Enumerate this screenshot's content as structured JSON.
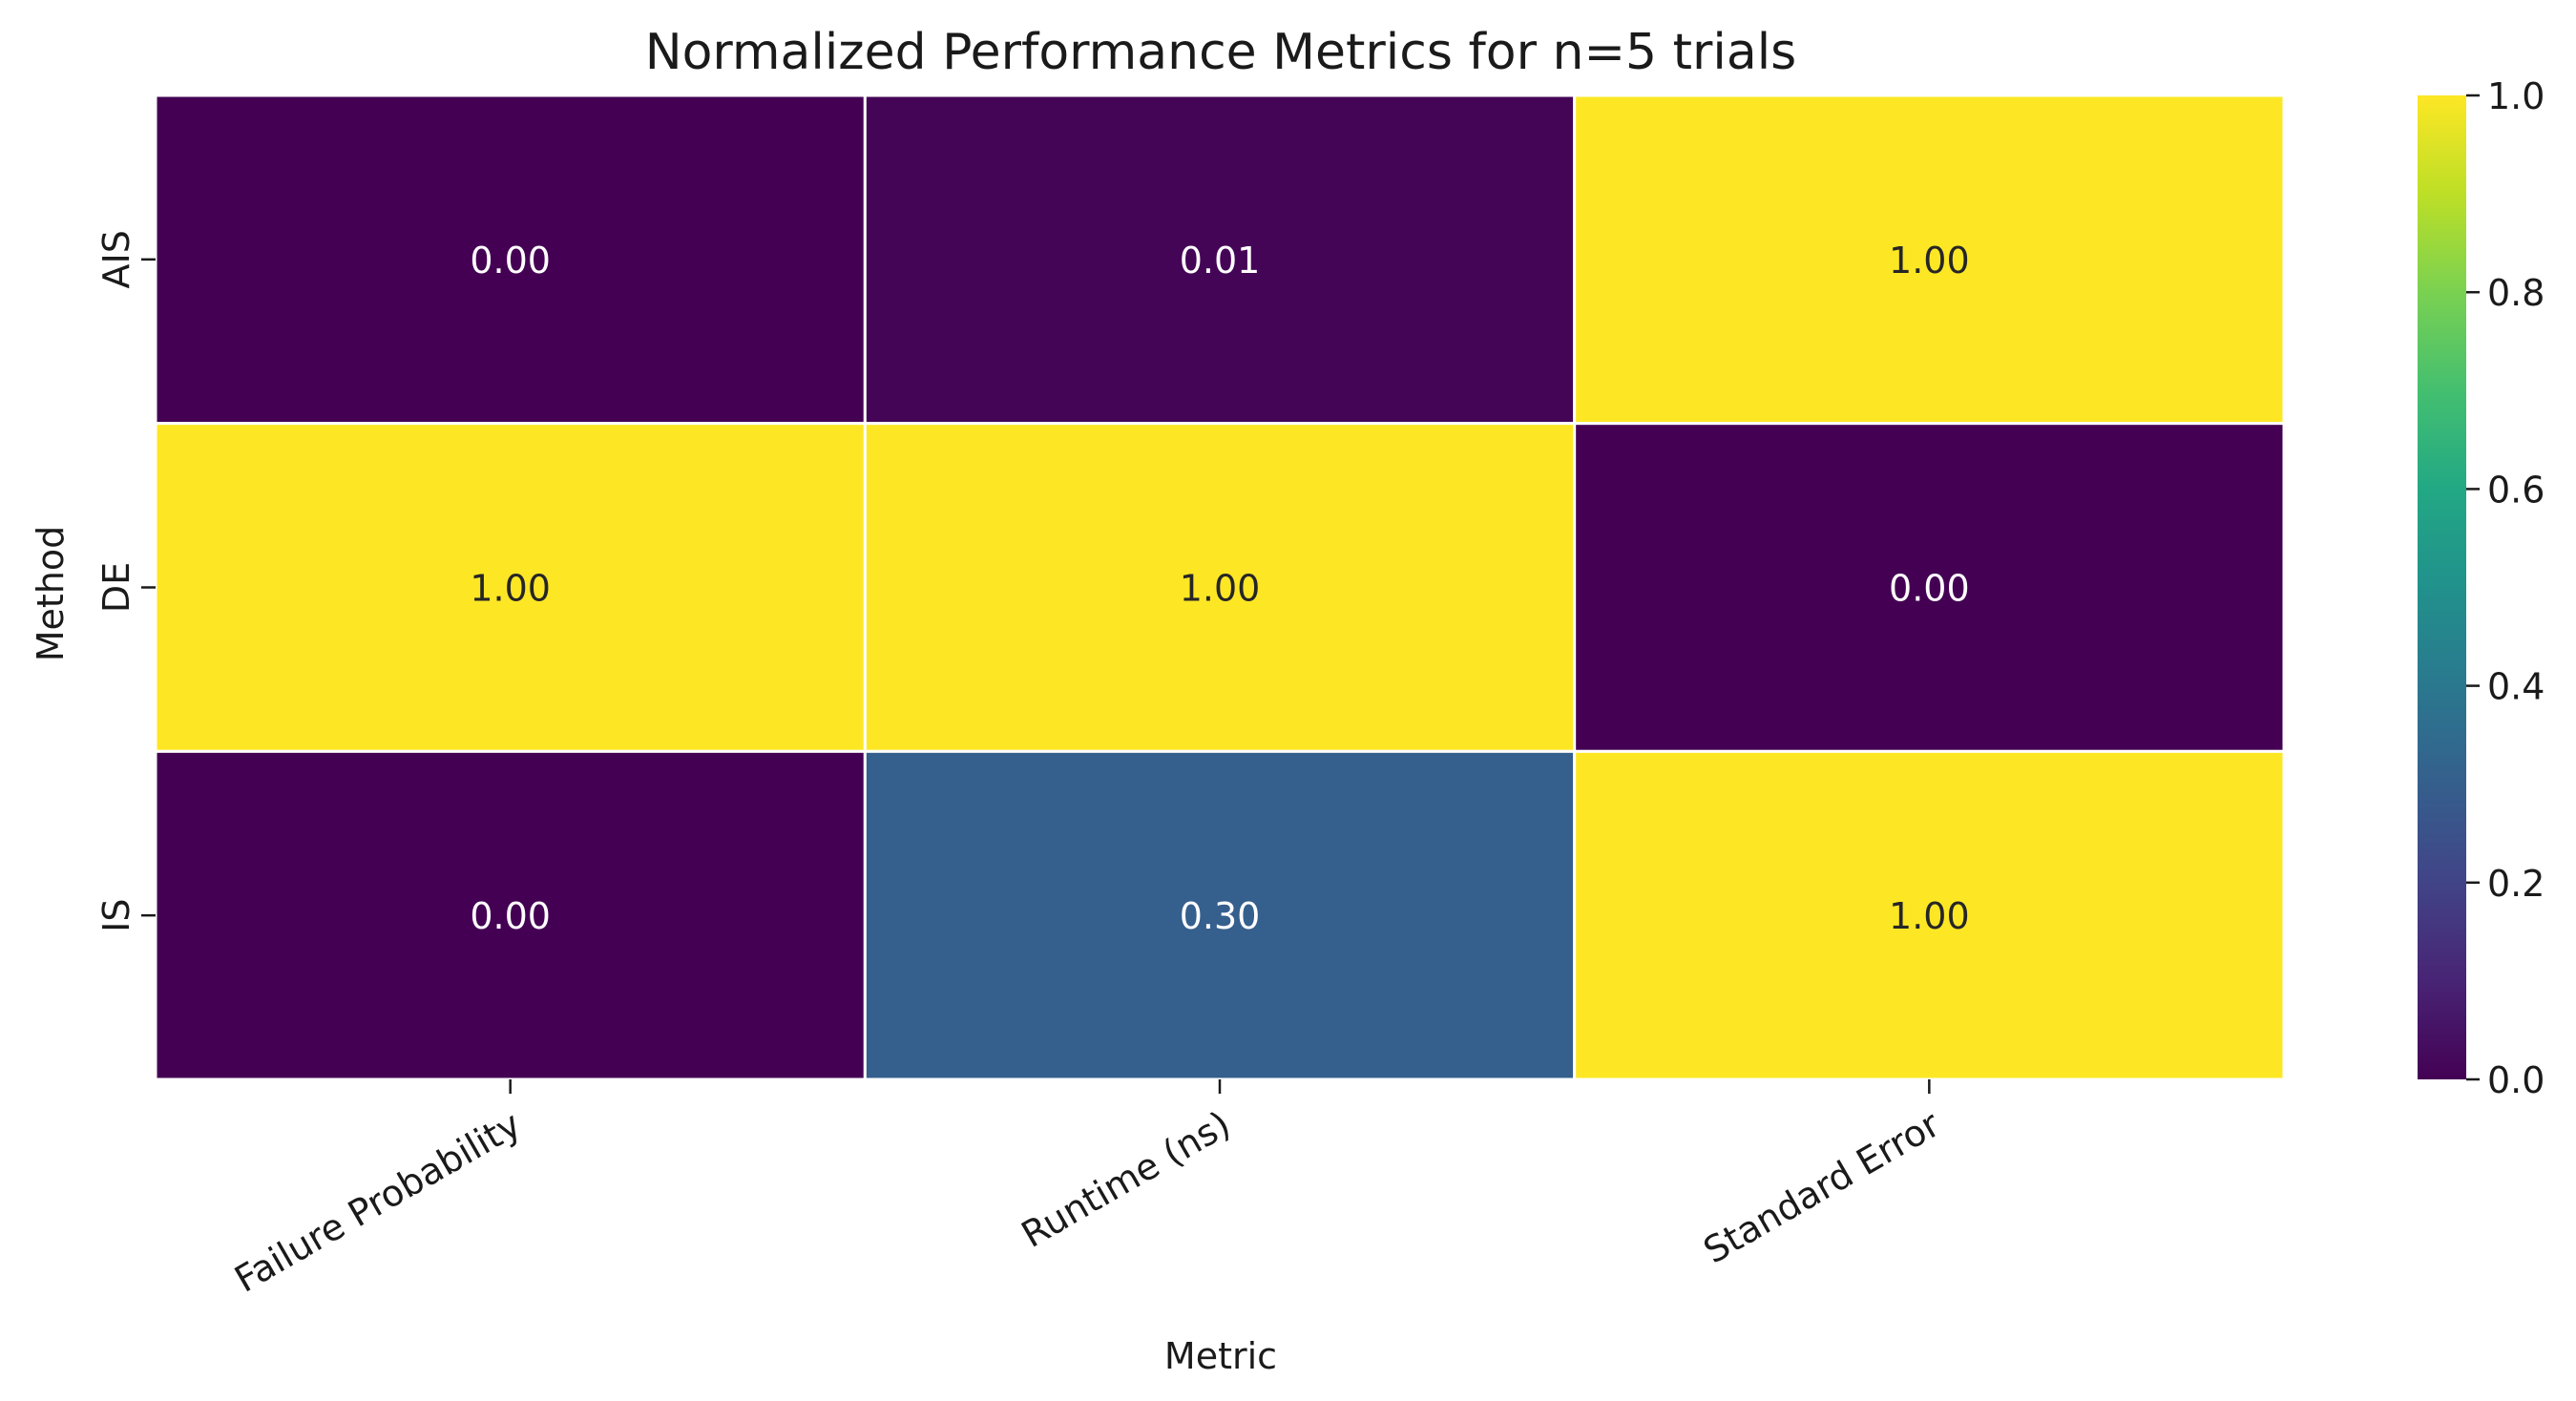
{
  "chart_data": {
    "type": "heatmap",
    "title": "Normalized Performance Metrics for n=5 trials",
    "xlabel": "Metric",
    "ylabel": "Method",
    "x_categories": [
      "Failure Probability",
      "Runtime (ns)",
      "Standard Error"
    ],
    "y_categories": [
      "AIS",
      "DE",
      "IS"
    ],
    "values": [
      [
        0.0,
        0.01,
        1.0
      ],
      [
        1.0,
        1.0,
        0.0
      ],
      [
        0.0,
        0.3,
        1.0
      ]
    ],
    "annotations": [
      [
        "0.00",
        "0.01",
        "1.00"
      ],
      [
        "1.00",
        "1.00",
        "0.00"
      ],
      [
        "0.00",
        "0.30",
        "1.00"
      ]
    ],
    "colormap": "viridis",
    "vmin": 0.0,
    "vmax": 1.0,
    "colorbar_ticks": [
      "0.0",
      "0.2",
      "0.4",
      "0.6",
      "0.8",
      "1.0"
    ],
    "cell_border_color": "#ffffff",
    "grid": false,
    "colorbar_placement": "right"
  }
}
